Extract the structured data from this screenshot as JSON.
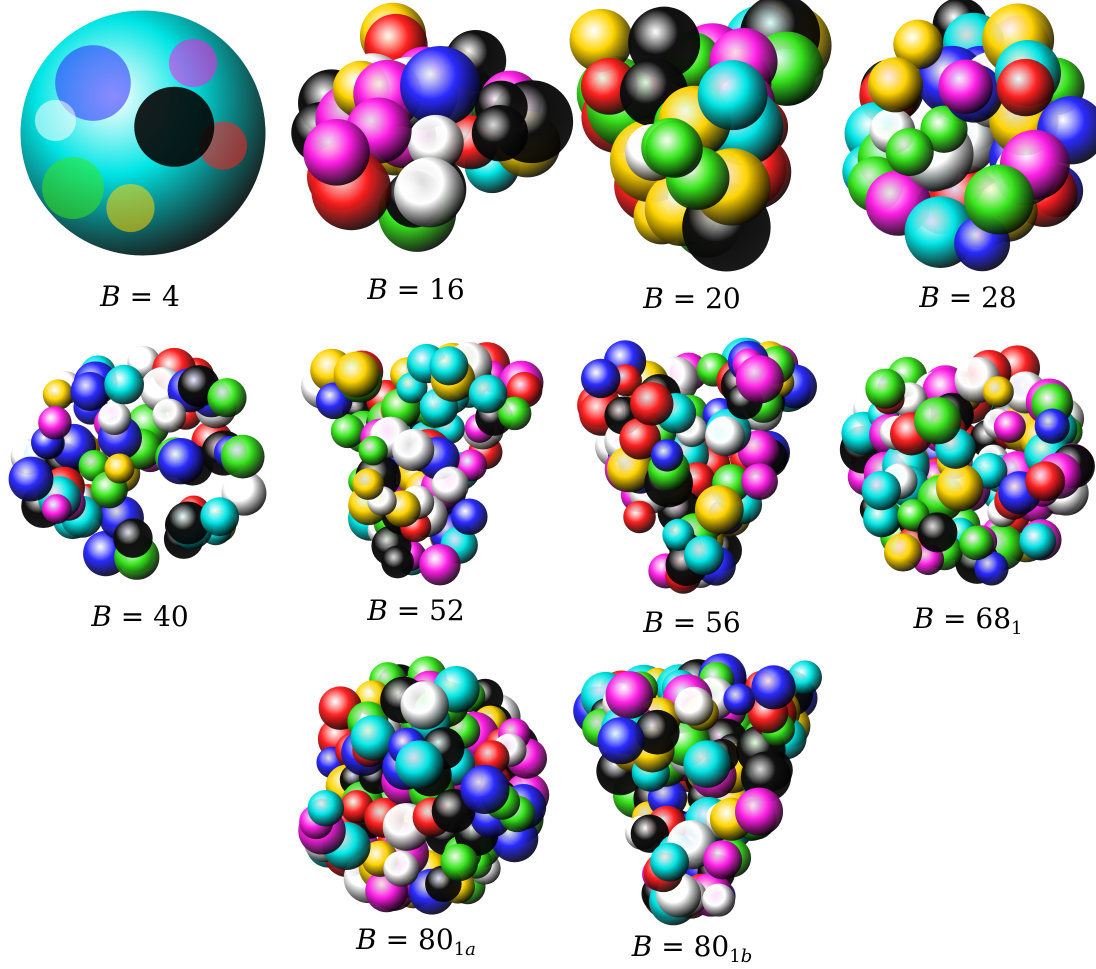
{
  "figure": {
    "panels": [
      {
        "id": "b4",
        "variable": "B",
        "relation": "=",
        "number": "4",
        "subscript": "",
        "lobes": 1
      },
      {
        "id": "b16",
        "variable": "B",
        "relation": "=",
        "number": "16",
        "subscript": "",
        "lobes": 16
      },
      {
        "id": "b20",
        "variable": "B",
        "relation": "=",
        "number": "20",
        "subscript": "",
        "lobes": 20
      },
      {
        "id": "b28",
        "variable": "B",
        "relation": "=",
        "number": "28",
        "subscript": "",
        "lobes": 28
      },
      {
        "id": "b40",
        "variable": "B",
        "relation": "=",
        "number": "40",
        "subscript": "",
        "lobes": 40
      },
      {
        "id": "b52",
        "variable": "B",
        "relation": "=",
        "number": "52",
        "subscript": "",
        "lobes": 52
      },
      {
        "id": "b56",
        "variable": "B",
        "relation": "=",
        "number": "56",
        "subscript": "",
        "lobes": 56
      },
      {
        "id": "b68",
        "variable": "B",
        "relation": "=",
        "number": "68",
        "subscript": "1",
        "lobes": 68
      },
      {
        "id": "b80a",
        "variable": "B",
        "relation": "=",
        "number": "80",
        "subscript": "1a",
        "lobes": 80
      },
      {
        "id": "b80b",
        "variable": "B",
        "relation": "=",
        "number": "80",
        "subscript": "1b",
        "lobes": 80
      }
    ],
    "palette": [
      "#ff2020",
      "#ffd400",
      "#37e61c",
      "#00e5e5",
      "#2a2aff",
      "#ff1ee6",
      "#ffffff",
      "#101010"
    ]
  }
}
